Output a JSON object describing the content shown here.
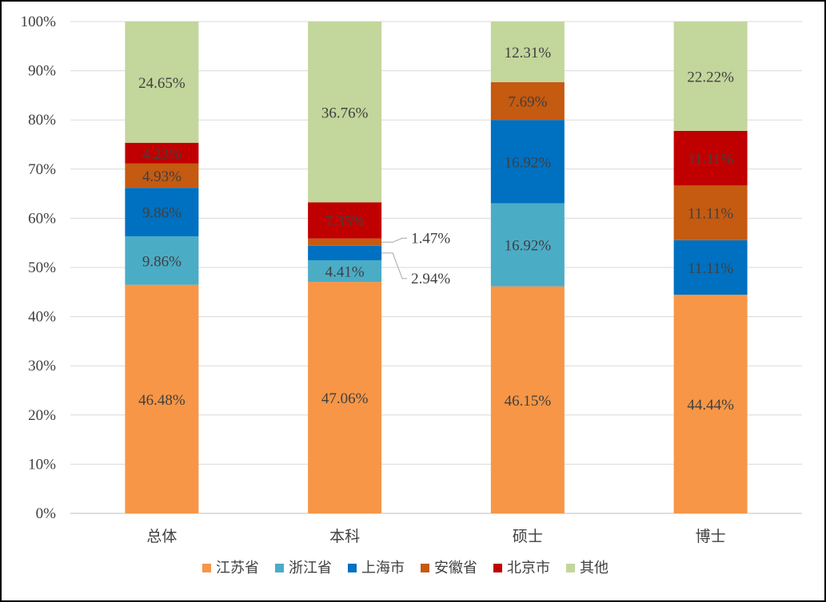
{
  "chart_data": {
    "type": "bar",
    "stacked": "percent",
    "categories": [
      "总体",
      "本科",
      "硕士",
      "博士"
    ],
    "series": [
      {
        "name": "江苏省",
        "color": "#F79646",
        "values": [
          46.48,
          47.06,
          46.15,
          44.44
        ],
        "labels": [
          "46.48%",
          "47.06%",
          "46.15%",
          "44.44%"
        ]
      },
      {
        "name": "浙江省",
        "color": "#4BACC6",
        "values": [
          9.86,
          4.41,
          16.92,
          0
        ],
        "labels": [
          "9.86%",
          "4.41%",
          "16.92%",
          ""
        ]
      },
      {
        "name": "上海市",
        "color": "#0070C0",
        "values": [
          9.86,
          2.94,
          16.92,
          11.11
        ],
        "labels": [
          "9.86%",
          "2.94%",
          "16.92%",
          "11.11%"
        ]
      },
      {
        "name": "安徽省",
        "color": "#C55A11",
        "values": [
          4.93,
          1.47,
          7.69,
          11.11
        ],
        "labels": [
          "4.93%",
          "1.47%",
          "7.69%",
          "11.11%"
        ]
      },
      {
        "name": "北京市",
        "color": "#C00000",
        "values": [
          4.23,
          7.35,
          0,
          11.11
        ],
        "labels": [
          "4.23%",
          "7.35%",
          "",
          "11.11%"
        ]
      },
      {
        "name": "其他",
        "color": "#C3D69B",
        "values": [
          24.65,
          36.76,
          12.31,
          22.22
        ],
        "labels": [
          "24.65%",
          "36.76%",
          "12.31%",
          "22.22%"
        ]
      }
    ],
    "ylim": [
      0,
      100
    ],
    "yticks": [
      "0%",
      "10%",
      "20%",
      "30%",
      "40%",
      "50%",
      "60%",
      "70%",
      "80%",
      "90%",
      "100%"
    ],
    "grid": true,
    "legend_position": "bottom"
  }
}
